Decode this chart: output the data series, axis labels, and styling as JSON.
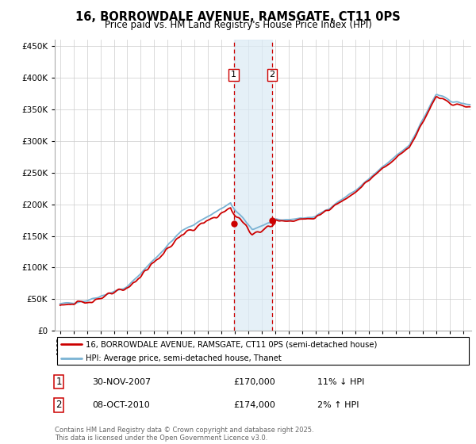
{
  "title": "16, BORROWDALE AVENUE, RAMSGATE, CT11 0PS",
  "subtitle": "Price paid vs. HM Land Registry's House Price Index (HPI)",
  "hpi_label": "HPI: Average price, semi-detached house, Thanet",
  "property_label": "16, BORROWDALE AVENUE, RAMSGATE, CT11 0PS (semi-detached house)",
  "sale1_date": "30-NOV-2007",
  "sale1_price": "£170,000",
  "sale1_note": "11% ↓ HPI",
  "sale2_date": "08-OCT-2010",
  "sale2_price": "£174,000",
  "sale2_note": "2% ↑ HPI",
  "hpi_color": "#7ab3d4",
  "price_color": "#cc0000",
  "vline_color": "#cc0000",
  "shade_color": "#daeaf5",
  "ylim": [
    0,
    460000
  ],
  "yticks": [
    0,
    50000,
    100000,
    150000,
    200000,
    250000,
    300000,
    350000,
    400000,
    450000
  ],
  "footer": "Contains HM Land Registry data © Crown copyright and database right 2025.\nThis data is licensed under the Open Government Licence v3.0.",
  "sale1_year": 2007.92,
  "sale2_year": 2010.77,
  "sale1_price_val": 170000,
  "sale2_price_val": 174000,
  "xmin": 1995,
  "xmax": 2025
}
